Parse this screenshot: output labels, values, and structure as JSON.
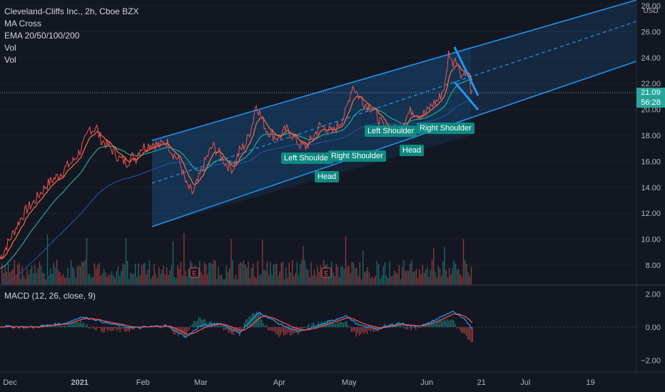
{
  "legend": {
    "symbol": "Cleveland-Cliffs Inc., 2h, Cboe BZX",
    "indicator1": "MA Cross",
    "indicator2": "EMA 20/50/100/200",
    "indicator3": "Vol",
    "indicator4": "Vol"
  },
  "macd_legend": "MACD (12, 26, close, 9)",
  "currency": "USD",
  "last_price": "21.09",
  "countdown": "56:28",
  "colors": {
    "background": "#131722",
    "channel": "#2196f3",
    "price_line": "#ef5350",
    "ema_fast": "#ff7043",
    "ema_mid": "#26a69a",
    "ema_slow": "#1e4fa0",
    "macd": "#2196f3",
    "signal": "#ef5350",
    "label_bg": "#0f8a82"
  },
  "pattern_labels": {
    "ls1": "Left Shoulder",
    "head1": "Head",
    "rs1": "Right Shoulder",
    "ls2": "Left Shoulder",
    "head2": "Head",
    "rs2": "Right Shoulder"
  },
  "chart_data": [
    {
      "type": "line",
      "title": "Cleveland-Cliffs Inc., 2h, Cboe BZX",
      "x_ticks": [
        "Dec",
        "2021",
        "Feb",
        "Mar",
        "Apr",
        "May",
        "Jun",
        "21",
        "Jul",
        "19"
      ],
      "y_ticks": [
        "28.00",
        "26.00",
        "24.00",
        "22.00",
        "20.00",
        "18.00",
        "16.00",
        "14.00",
        "12.00",
        "10.00",
        "8.00"
      ],
      "ylim": [
        7,
        28
      ],
      "series": [
        {
          "x": [
            0.0,
            0.01,
            0.02,
            0.03,
            0.04,
            0.05,
            0.06,
            0.07,
            0.08,
            0.09,
            0.1,
            0.11,
            0.12,
            0.13,
            0.135,
            0.14,
            0.145,
            0.15,
            0.16,
            0.17,
            0.18,
            0.19,
            0.2,
            0.205,
            0.21,
            0.22,
            0.23,
            0.24,
            0.25,
            0.26,
            0.27,
            0.28,
            0.29,
            0.3,
            0.31,
            0.32,
            0.33,
            0.34,
            0.35,
            0.36,
            0.37,
            0.38,
            0.385,
            0.39,
            0.4,
            0.41,
            0.42,
            0.43,
            0.44,
            0.45,
            0.46,
            0.47,
            0.48,
            0.49,
            0.5,
            0.51,
            0.52,
            0.53,
            0.54,
            0.55,
            0.56,
            0.57,
            0.58,
            0.59,
            0.6,
            0.61,
            0.62,
            0.63,
            0.64,
            0.65,
            0.66,
            0.67,
            0.675,
            0.68,
            0.685,
            0.69,
            0.695,
            0.7,
            0.705,
            0.71
          ],
          "values": [
            8.5,
            9.5,
            10.5,
            11.5,
            12.3,
            12.8,
            13.5,
            14.2,
            14.6,
            15.0,
            15.6,
            16.0,
            16.8,
            17.8,
            18.6,
            18.4,
            18.7,
            17.8,
            17.3,
            16.8,
            16.2,
            15.9,
            16.4,
            16.2,
            17.0,
            17.2,
            17.4,
            17.2,
            17.6,
            16.6,
            16.0,
            14.2,
            13.5,
            14.8,
            16.2,
            17.2,
            16.6,
            15.8,
            15.4,
            16.8,
            17.4,
            19.0,
            20.5,
            19.8,
            18.5,
            18.0,
            17.8,
            18.5,
            18.0,
            17.3,
            17.1,
            17.8,
            18.7,
            18.6,
            18.2,
            18.9,
            19.8,
            21.9,
            21.0,
            20.4,
            20.1,
            19.2,
            18.4,
            18.6,
            18.2,
            19.4,
            20.0,
            19.6,
            19.7,
            20.4,
            20.8,
            22.0,
            24.6,
            23.5,
            24.2,
            23.2,
            22.6,
            23.0,
            22.4,
            21.1
          ]
        }
      ]
    },
    {
      "type": "line",
      "title": "MACD (12, 26, close, 9)",
      "y_ticks": [
        "2.00",
        "0.00",
        "−2.00"
      ],
      "ylim": [
        -2.5,
        2.5
      ],
      "series": [
        {
          "x": [
            0.0,
            0.05,
            0.1,
            0.12,
            0.14,
            0.16,
            0.2,
            0.25,
            0.28,
            0.3,
            0.33,
            0.36,
            0.39,
            0.42,
            0.45,
            0.48,
            0.52,
            0.54,
            0.57,
            0.6,
            0.62,
            0.64,
            0.66,
            0.68,
            0.7,
            0.71
          ],
          "values": [
            0.05,
            0.0,
            0.25,
            0.6,
            0.5,
            0.25,
            -0.05,
            0.1,
            -0.6,
            0.05,
            0.25,
            -0.35,
            0.9,
            0.2,
            -0.3,
            0.1,
            0.7,
            0.1,
            -0.1,
            0.25,
            0.05,
            0.15,
            0.55,
            0.95,
            0.4,
            -0.05
          ]
        }
      ]
    }
  ]
}
